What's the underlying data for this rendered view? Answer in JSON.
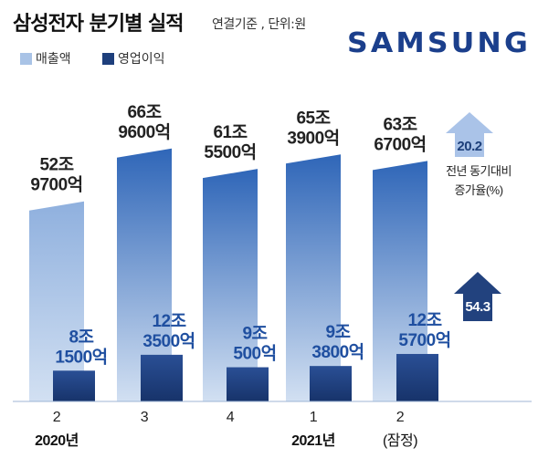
{
  "title": "삼성전자 분기별 실적",
  "subtitle": "연결기준 , 단위:원",
  "brand": "SAMSUNG",
  "colors": {
    "revenue_top": "#2f66b8",
    "revenue_bottom": "#d2e0f2",
    "profit_top": "#2a4f95",
    "profit_bottom": "#17336a",
    "value_dark": "#222222",
    "value_blue": "#1f4fa0",
    "arrow_light": "#aac3e8",
    "arrow_dark": "#22427e",
    "brand": "#1b3f8c"
  },
  "chart_data": {
    "type": "bar",
    "title": "삼성전자 분기별 실적",
    "subtitle": "연결기준 , 단위:원",
    "categories": [
      "2",
      "3",
      "4",
      "1",
      "2"
    ],
    "category_sublabels": [
      "2020년",
      "",
      "",
      "2021년",
      "(잠정)"
    ],
    "series": [
      {
        "name": "매출액",
        "values": [
          52.97,
          66.96,
          61.55,
          65.39,
          63.67
        ],
        "labels": [
          [
            "52조",
            "9700억"
          ],
          [
            "66조",
            "9600억"
          ],
          [
            "61조",
            "5500억"
          ],
          [
            "65조",
            "3900억"
          ],
          [
            "63조",
            "6700억"
          ]
        ]
      },
      {
        "name": "영업이익",
        "values": [
          8.15,
          12.35,
          9.05,
          9.38,
          12.57
        ],
        "labels": [
          [
            "8조",
            "1500억"
          ],
          [
            "12조",
            "3500억"
          ],
          [
            "9조",
            "500억"
          ],
          [
            "9조",
            "3800억"
          ],
          [
            "12조",
            "5700억"
          ]
        ]
      }
    ],
    "annotations": [
      {
        "series": "매출액",
        "value": "20.2"
      },
      {
        "series": "영업이익",
        "value": "54.3"
      }
    ],
    "annotation_caption": [
      "전년 동기대비",
      "증가율(%)"
    ],
    "grid": false,
    "legend_position": "top-left"
  }
}
